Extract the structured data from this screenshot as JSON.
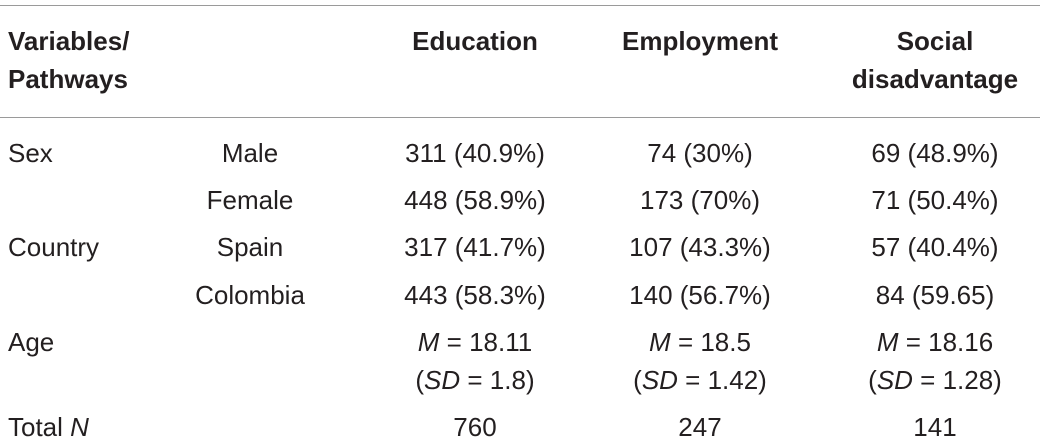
{
  "header": {
    "variables_line1": "Variables/",
    "variables_line2": "Pathways",
    "education": "Education",
    "employment": "Employment",
    "social_line1": "Social",
    "social_line2": "disadvantage"
  },
  "rows": {
    "sex": {
      "label": "Sex",
      "male": {
        "sub": "Male",
        "education": "311 (40.9%)",
        "employment": "74 (30%)",
        "social": "69 (48.9%)"
      },
      "female": {
        "sub": "Female",
        "education": "448 (58.9%)",
        "employment": "173 (70%)",
        "social": "71 (50.4%)"
      }
    },
    "country": {
      "label": "Country",
      "spain": {
        "sub": "Spain",
        "education": "317 (41.7%)",
        "employment": "107 (43.3%)",
        "social": "57 (40.4%)"
      },
      "colombia": {
        "sub": "Colombia",
        "education": "443 (58.3%)",
        "employment": "140 (56.7%)",
        "social": "84 (59.65)"
      }
    },
    "age": {
      "label": "Age",
      "education": {
        "m_sym": "M",
        "m_val": " = 18.11",
        "sd_open": "(",
        "sd_sym": "SD",
        "sd_val": " = 1.8)"
      },
      "employment": {
        "m_sym": "M",
        "m_val": " = 18.5",
        "sd_open": "(",
        "sd_sym": "SD",
        "sd_val": " = 1.42)"
      },
      "social": {
        "m_sym": "M",
        "m_val": " = 18.16",
        "sd_open": "(",
        "sd_sym": "SD",
        "sd_val": " = 1.28)"
      }
    },
    "total": {
      "label_prefix": "Total ",
      "label_n": "N",
      "education": "760",
      "employment": "247",
      "social": "141"
    }
  }
}
